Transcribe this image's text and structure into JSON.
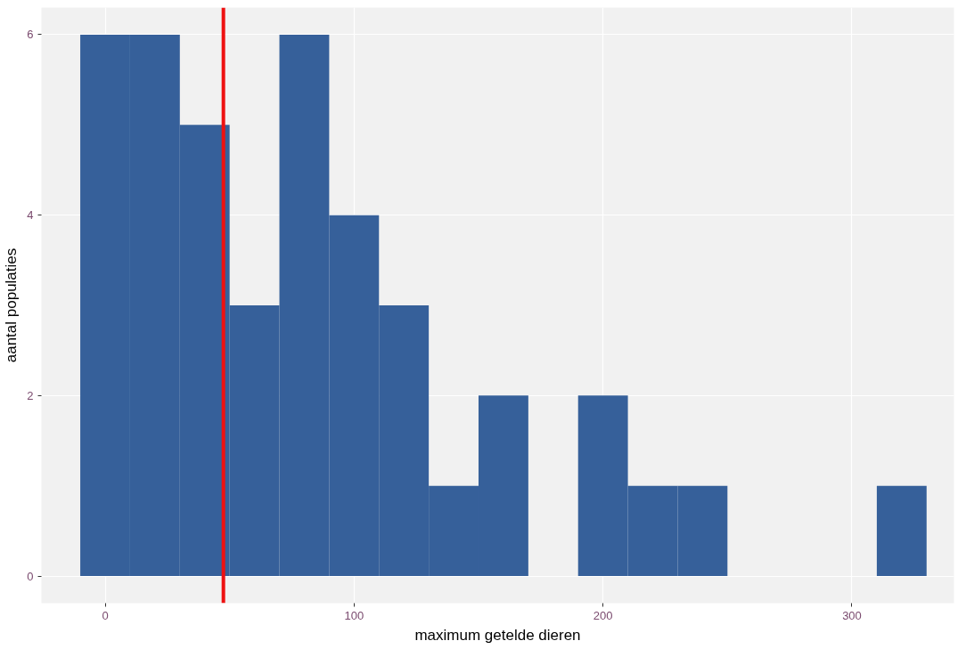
{
  "chart_data": {
    "type": "histogram",
    "xlabel": "maximum getelde dieren",
    "ylabel": "aantal populaties",
    "bins": [
      -10,
      10,
      30,
      50,
      70,
      90,
      110,
      130,
      150,
      170,
      190,
      210,
      230,
      250,
      270,
      290,
      310,
      330
    ],
    "values": [
      6,
      6,
      5,
      3,
      6,
      4,
      3,
      1,
      2,
      0,
      2,
      1,
      1,
      0,
      0,
      0,
      1
    ],
    "color": "#36609a",
    "xlim": [
      -25.6,
      341
    ],
    "xticks": [
      0,
      100,
      200,
      300
    ],
    "ylim": [
      -0.3,
      6.3
    ],
    "yticks": [
      0,
      2,
      4,
      6
    ],
    "grid": true,
    "ref_lines": [
      {
        "axis": "x",
        "value": 47.5,
        "color": "#ee1111"
      }
    ]
  }
}
